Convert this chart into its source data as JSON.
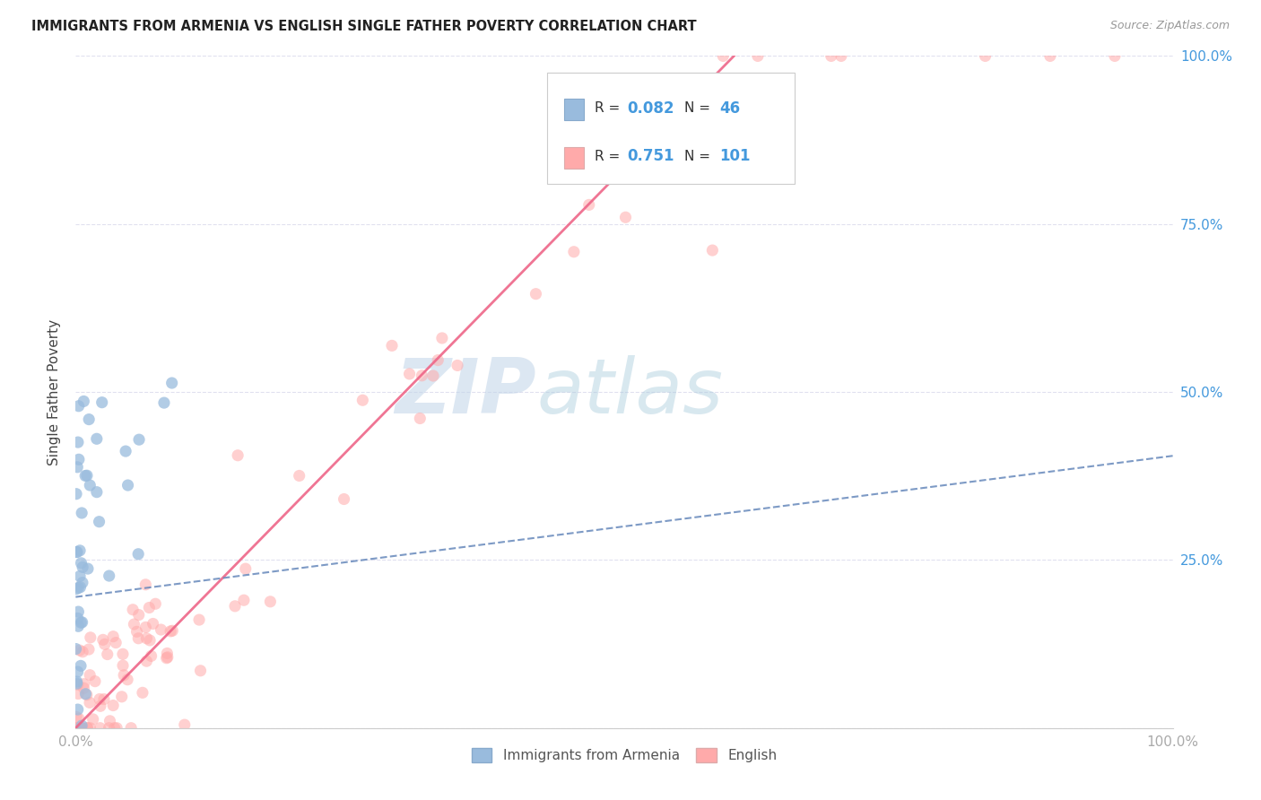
{
  "title": "IMMIGRANTS FROM ARMENIA VS ENGLISH SINGLE FATHER POVERTY CORRELATION CHART",
  "source": "Source: ZipAtlas.com",
  "ylabel": "Single Father Poverty",
  "legend_label_1": "Immigrants from Armenia",
  "legend_label_2": "English",
  "R1": 0.082,
  "N1": 46,
  "R2": 0.751,
  "N2": 101,
  "color_blue": "#99BBDD",
  "color_pink": "#FFAAAA",
  "color_blue_text": "#4499DD",
  "color_blue_line": "#6688BB",
  "color_pink_line": "#EE6688",
  "color_grid": "#DDDDEE",
  "background": "#FFFFFF",
  "pink_line_x0": 0.0,
  "pink_line_y0": 0.0,
  "pink_line_x1": 0.6,
  "pink_line_y1": 1.0,
  "blue_line_x0": 0.0,
  "blue_line_y0": 0.195,
  "blue_line_x1": 1.0,
  "blue_line_y1": 0.405,
  "watermark_text": "ZIPatlas",
  "watermark_color": "#C8DCEE",
  "xlim": [
    0,
    1.0
  ],
  "ylim": [
    0,
    1.0
  ]
}
